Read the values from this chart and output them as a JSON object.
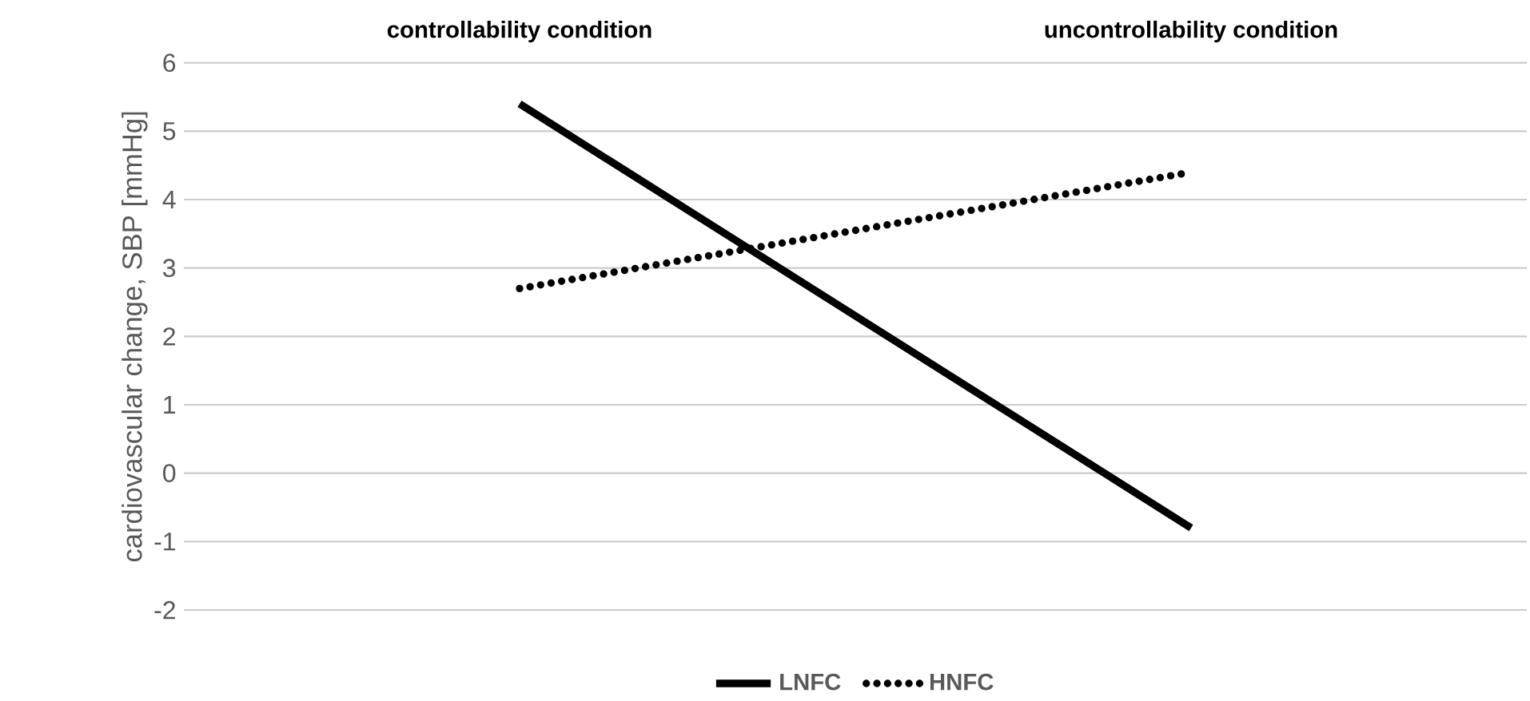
{
  "chart_data": {
    "type": "line",
    "ylabel": "cardiovascular change, SBP [mmHg]",
    "categories": [
      "controllability condition",
      "uncontrollability condition"
    ],
    "series": [
      {
        "name": "LNFC",
        "color": "#000000",
        "line_style": "solid",
        "values": [
          5.4,
          -0.8
        ]
      },
      {
        "name": "HNFC",
        "color": "#000000",
        "line_style": "dotted",
        "values": [
          2.7,
          4.4
        ]
      }
    ],
    "ylim": [
      -2,
      6
    ],
    "yticks": [
      -2,
      -1,
      0,
      1,
      2,
      3,
      4,
      5,
      6
    ],
    "grid": "y",
    "legend": "bottom",
    "marker": "none"
  }
}
